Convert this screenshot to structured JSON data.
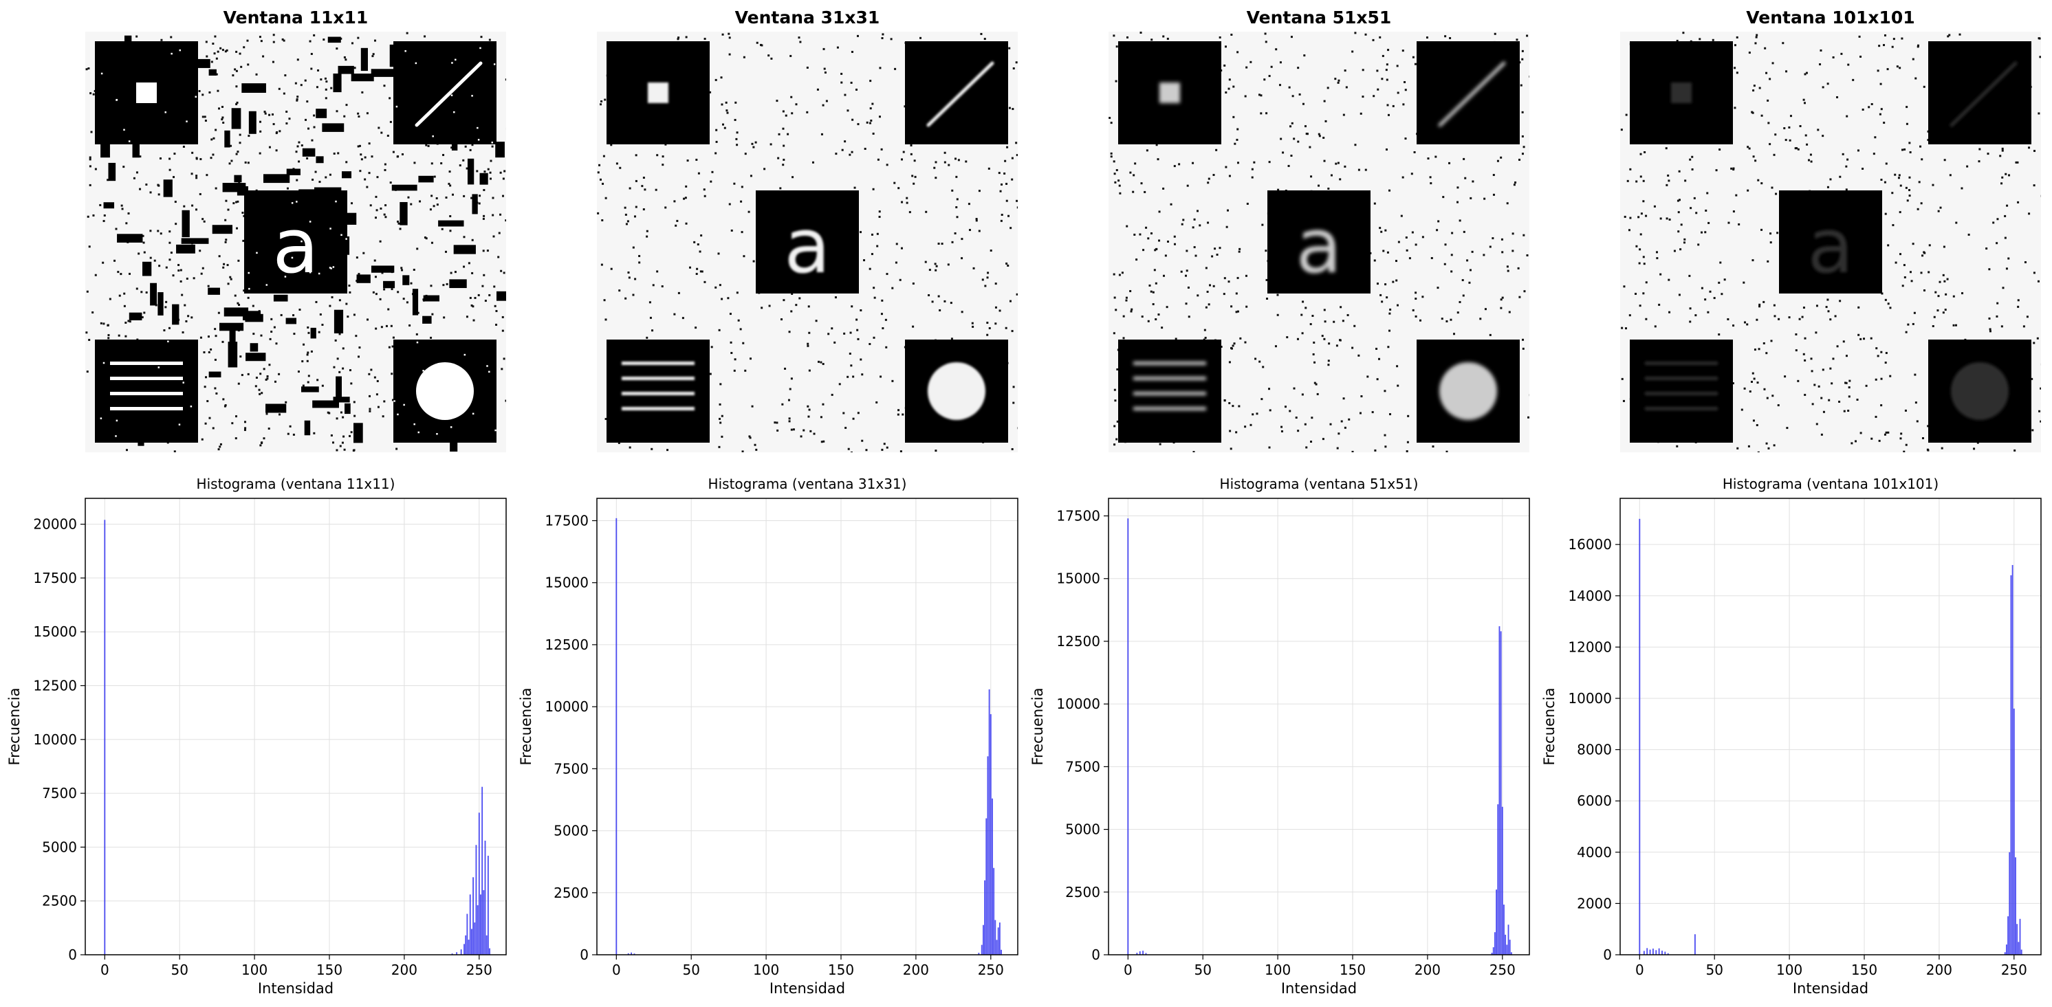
{
  "panels": [
    {
      "title": "Ventana 11x11",
      "hist_title": "Histograma (ventana 11x11)",
      "image_brightness": 1.0,
      "image_blur": 0.0,
      "speckle_density": "heavy"
    },
    {
      "title": "Ventana 31x31",
      "hist_title": "Histograma (ventana 31x31)",
      "image_brightness": 0.95,
      "image_blur": 1.5,
      "speckle_density": "light"
    },
    {
      "title": "Ventana 51x51",
      "hist_title": "Histograma (ventana 51x51)",
      "image_brightness": 0.8,
      "image_blur": 3.0,
      "speckle_density": "light"
    },
    {
      "title": "Ventana 101x101",
      "hist_title": "Histograma (ventana 101x101)",
      "image_brightness": 0.18,
      "image_blur": 2.0,
      "speckle_density": "light"
    }
  ],
  "chart_data": [
    {
      "type": "bar",
      "title": "Histograma (ventana 11x11)",
      "xlabel": "Intensidad",
      "ylabel": "Frecuencia",
      "xlim": [
        -13,
        268
      ],
      "ylim": [
        0,
        21200
      ],
      "xticks": [
        0,
        50,
        100,
        150,
        200,
        250
      ],
      "yticks": [
        0,
        2500,
        5000,
        7500,
        10000,
        12500,
        15000,
        17500,
        20000
      ],
      "grid": true,
      "color": "#3030f0",
      "x": [
        0,
        232,
        235,
        238,
        240,
        241,
        242,
        243,
        244,
        245,
        246,
        247,
        248,
        249,
        250,
        251,
        252,
        253,
        254,
        255,
        256,
        257
      ],
      "values": [
        20200,
        60,
        120,
        250,
        500,
        900,
        1900,
        700,
        2800,
        1200,
        3600,
        1500,
        5100,
        2300,
        6600,
        2800,
        7800,
        3000,
        5300,
        900,
        4600,
        300
      ]
    },
    {
      "type": "bar",
      "title": "Histograma (ventana 31x31)",
      "xlabel": "Intensidad",
      "ylabel": "Frecuencia",
      "xlim": [
        -13,
        268
      ],
      "ylim": [
        0,
        18400
      ],
      "xticks": [
        0,
        50,
        100,
        150,
        200,
        250
      ],
      "yticks": [
        0,
        2500,
        5000,
        7500,
        10000,
        12500,
        15000,
        17500
      ],
      "grid": true,
      "color": "#3030f0",
      "x": [
        0,
        8,
        10,
        12,
        242,
        244,
        245,
        246,
        247,
        248,
        249,
        250,
        251,
        252,
        253,
        254,
        255,
        256,
        257
      ],
      "values": [
        17600,
        60,
        90,
        50,
        80,
        400,
        1200,
        3000,
        5500,
        8000,
        10700,
        9700,
        6300,
        3500,
        1400,
        600,
        1100,
        1300,
        200
      ]
    },
    {
      "type": "bar",
      "title": "Histograma (ventana 51x51)",
      "xlabel": "Intensidad",
      "ylabel": "Frecuencia",
      "xlim": [
        -13,
        268
      ],
      "ylim": [
        0,
        18200
      ],
      "xticks": [
        0,
        50,
        100,
        150,
        200,
        250
      ],
      "yticks": [
        0,
        2500,
        5000,
        7500,
        10000,
        12500,
        15000,
        17500
      ],
      "grid": true,
      "color": "#3030f0",
      "x": [
        0,
        6,
        8,
        10,
        12,
        243,
        244,
        245,
        246,
        247,
        248,
        249,
        250,
        251,
        252,
        253,
        254,
        255,
        256
      ],
      "values": [
        17400,
        80,
        140,
        160,
        70,
        80,
        300,
        900,
        2600,
        6000,
        13100,
        12900,
        5900,
        2000,
        800,
        400,
        1200,
        600,
        100
      ]
    },
    {
      "type": "bar",
      "title": "Histograma (ventana 101x101)",
      "xlabel": "Intensidad",
      "ylabel": "Frecuencia",
      "xlim": [
        -13,
        268
      ],
      "ylim": [
        0,
        17800
      ],
      "xticks": [
        0,
        50,
        100,
        150,
        200,
        250
      ],
      "yticks": [
        0,
        2000,
        4000,
        6000,
        8000,
        10000,
        12000,
        14000,
        16000
      ],
      "grid": true,
      "color": "#3030f0",
      "x": [
        0,
        3,
        5,
        7,
        9,
        11,
        13,
        15,
        17,
        19,
        37,
        244,
        245,
        246,
        247,
        248,
        249,
        250,
        251,
        252,
        253,
        254,
        255
      ],
      "values": [
        17000,
        150,
        260,
        200,
        240,
        180,
        250,
        160,
        120,
        60,
        800,
        100,
        400,
        1500,
        4000,
        14800,
        15200,
        9600,
        3800,
        1200,
        500,
        1400,
        200
      ]
    }
  ]
}
